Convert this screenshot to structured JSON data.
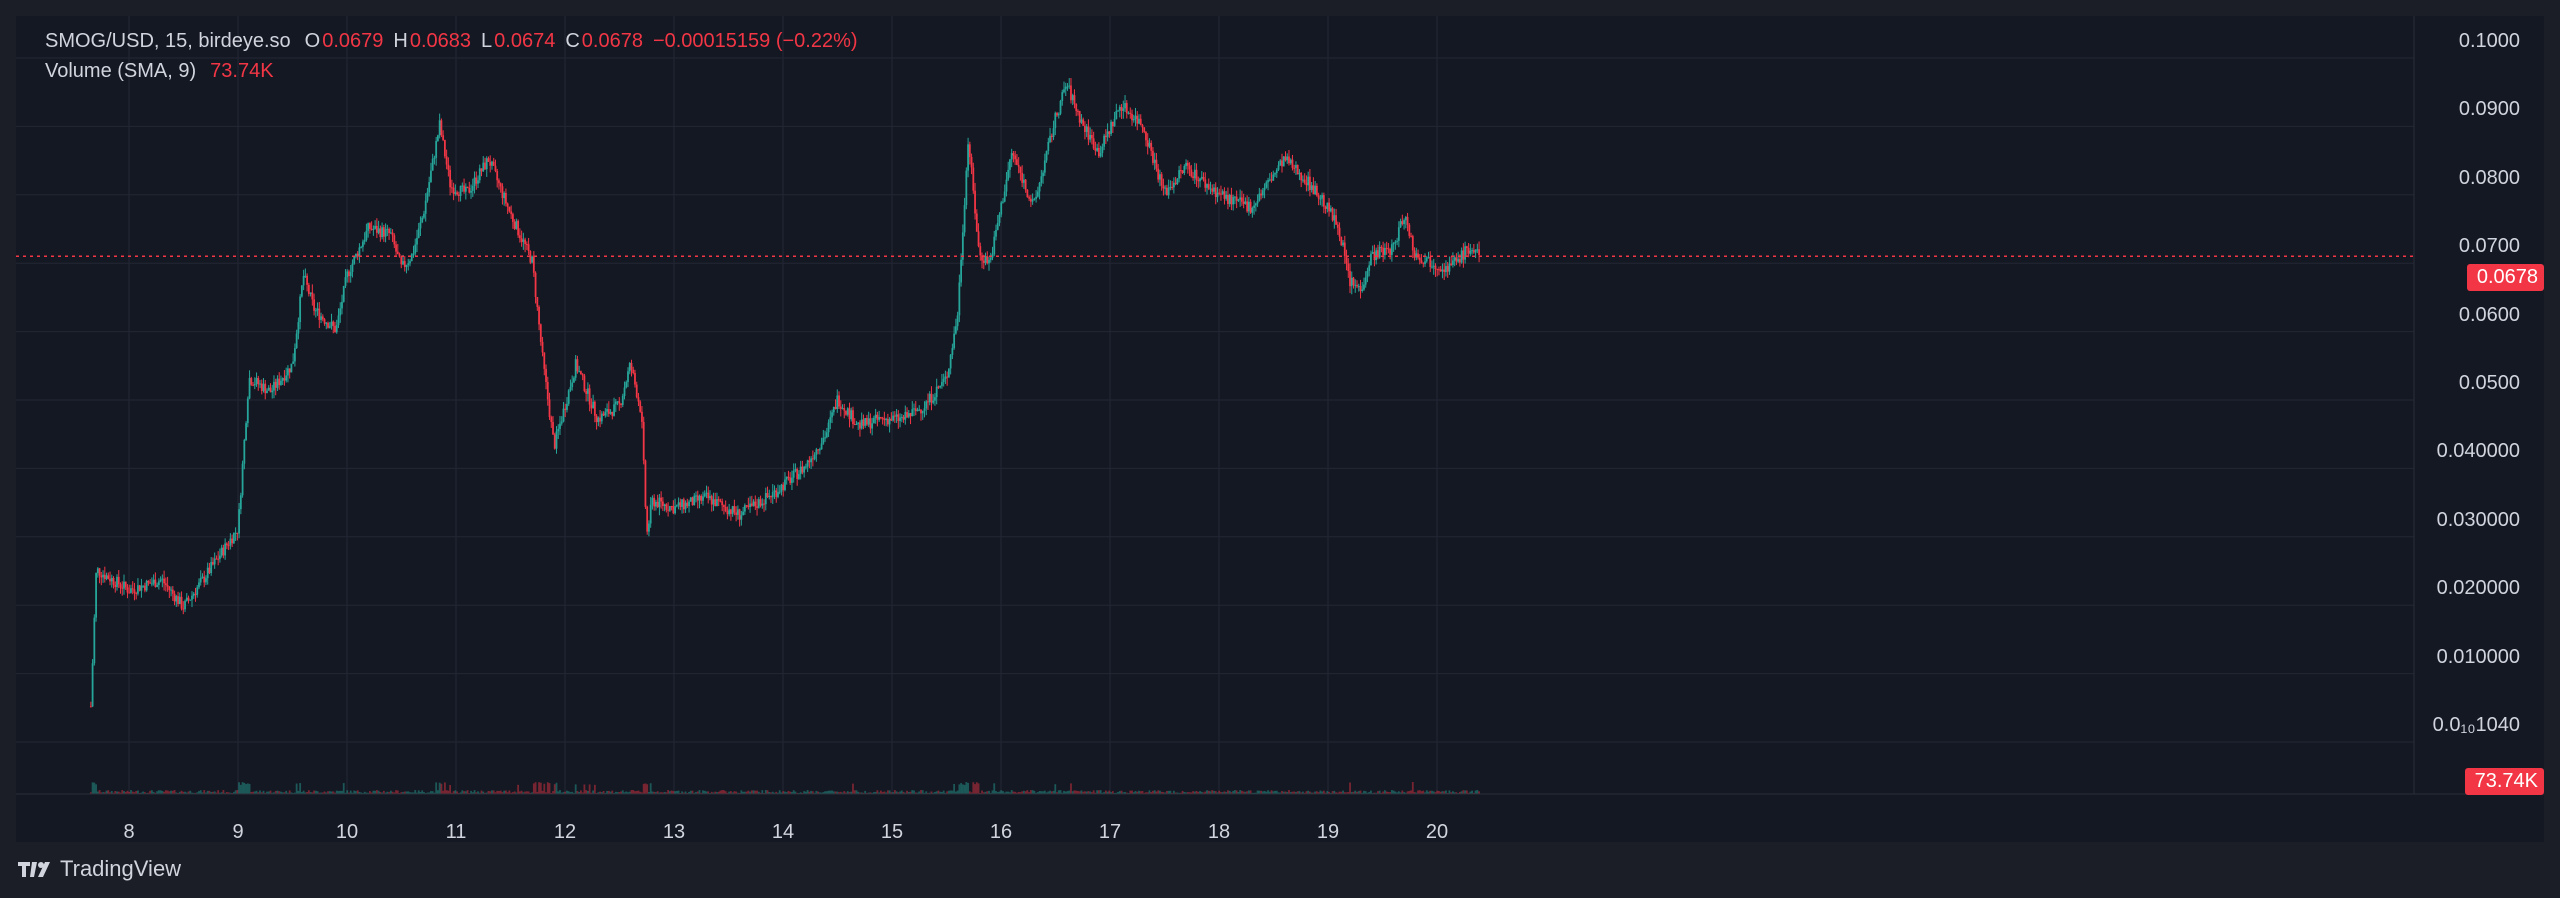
{
  "legend": {
    "symbol": "SMOG/USD, 15, birdeye.so",
    "open_label": "O",
    "open": "0.0679",
    "high_label": "H",
    "high": "0.0683",
    "low_label": "L",
    "low": "0.0674",
    "close_label": "C",
    "close": "0.0678",
    "change": "−0.00015159 (−0.22%)",
    "volume_label": "Volume (SMA, 9)",
    "volume_value": "73.74K"
  },
  "price_axis": [
    "0.1000",
    "0.0900",
    "0.0800",
    "0.0700",
    "0.0600",
    "0.0500",
    "0.040000",
    "0.030000",
    "0.020000",
    "0.010000",
    "0.0₁₀1040"
  ],
  "current_price_tag": "0.0678",
  "volume_tag": "73.74K",
  "footer": {
    "brand": "TradingView"
  },
  "colors": {
    "up": "#26a69a",
    "down": "#f23645",
    "background": "#141823",
    "grid": "#232735"
  },
  "chart_data": {
    "type": "candlestick",
    "x_label": "day",
    "y_range": [
      0,
      0.105
    ],
    "categories": [
      "8",
      "9",
      "10",
      "11",
      "12",
      "13",
      "14",
      "15",
      "16",
      "17",
      "18",
      "19",
      "20"
    ],
    "x": [
      7.65,
      7.7,
      8.0,
      8.3,
      8.5,
      8.7,
      9.0,
      9.1,
      9.3,
      9.5,
      9.6,
      9.7,
      9.9,
      10.0,
      10.2,
      10.4,
      10.5,
      10.6,
      10.7,
      10.85,
      10.95,
      11.1,
      11.3,
      11.5,
      11.7,
      11.8,
      11.9,
      12.1,
      12.3,
      12.5,
      12.6,
      12.7,
      12.75,
      12.8,
      13.0,
      13.3,
      13.6,
      13.9,
      14.2,
      14.4,
      14.5,
      14.7,
      14.9,
      15.1,
      15.3,
      15.5,
      15.6,
      15.7,
      15.8,
      15.9,
      16.0,
      16.1,
      16.3,
      16.5,
      16.6,
      16.75,
      16.9,
      17.1,
      17.3,
      17.5,
      17.7,
      17.9,
      18.1,
      18.3,
      18.6,
      18.8,
      18.95,
      19.1,
      19.2,
      19.3,
      19.4,
      19.6,
      19.7,
      19.8,
      19.95,
      20.1,
      20.3,
      20.4
    ],
    "close": [
      0.002,
      0.022,
      0.019,
      0.0205,
      0.0165,
      0.021,
      0.028,
      0.05,
      0.048,
      0.052,
      0.065,
      0.06,
      0.057,
      0.065,
      0.072,
      0.071,
      0.066,
      0.068,
      0.074,
      0.087,
      0.078,
      0.077,
      0.082,
      0.074,
      0.067,
      0.052,
      0.04,
      0.052,
      0.044,
      0.046,
      0.052,
      0.045,
      0.027,
      0.032,
      0.031,
      0.0325,
      0.03,
      0.033,
      0.037,
      0.042,
      0.047,
      0.043,
      0.044,
      0.044,
      0.046,
      0.05,
      0.059,
      0.085,
      0.068,
      0.067,
      0.075,
      0.083,
      0.075,
      0.088,
      0.093,
      0.087,
      0.083,
      0.09,
      0.087,
      0.077,
      0.081,
      0.078,
      0.076,
      0.075,
      0.082,
      0.079,
      0.076,
      0.072,
      0.064,
      0.063,
      0.068,
      0.069,
      0.074,
      0.068,
      0.067,
      0.066,
      0.069,
      0.0678
    ]
  }
}
